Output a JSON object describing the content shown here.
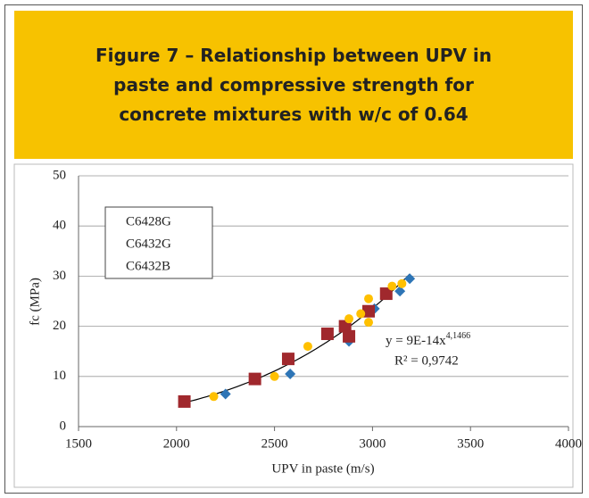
{
  "chart_data": {
    "type": "scatter",
    "title": "Figure 7 – Relationship between UPV in paste and compressive strength for concrete mixtures with w/c of 0.64",
    "x_label": "UPV in paste (m/s)",
    "y_label": "fc (MPa)",
    "xlim": [
      1500,
      4000
    ],
    "xticks": [
      1500,
      2000,
      2500,
      3000,
      3500,
      4000
    ],
    "ylim": [
      0,
      50
    ],
    "yticks": [
      0,
      10,
      20,
      30,
      40,
      50
    ],
    "grid": true,
    "series": [
      {
        "name": "C6428G",
        "color": "#2e75b6",
        "marker": "diamond",
        "x": [
          2250,
          2580,
          2880,
          3010,
          3140,
          3190
        ],
        "values": [
          6.5,
          10.5,
          17,
          23.5,
          27,
          29.5
        ]
      },
      {
        "name": "C6432G",
        "color": "#a0282d",
        "marker": "square",
        "x": [
          2040,
          2400,
          2570,
          2770,
          2860,
          2880,
          2980,
          3070
        ],
        "values": [
          5,
          9.5,
          13.5,
          18.5,
          20,
          18,
          23,
          26.5
        ]
      },
      {
        "name": "C6432B",
        "color": "#ffc000",
        "marker": "circle",
        "x": [
          2190,
          2500,
          2670,
          2880,
          2940,
          2980,
          2980,
          3100,
          3150
        ],
        "values": [
          6,
          10,
          16,
          21.5,
          22.5,
          25.5,
          20.8,
          28,
          28.5
        ]
      }
    ],
    "trendline": {
      "equation": "y = 9E-14x",
      "exponent": "4,1466",
      "r2": "R² = 0,9742",
      "coefficient": 9e-14,
      "power": 4.1466
    }
  }
}
